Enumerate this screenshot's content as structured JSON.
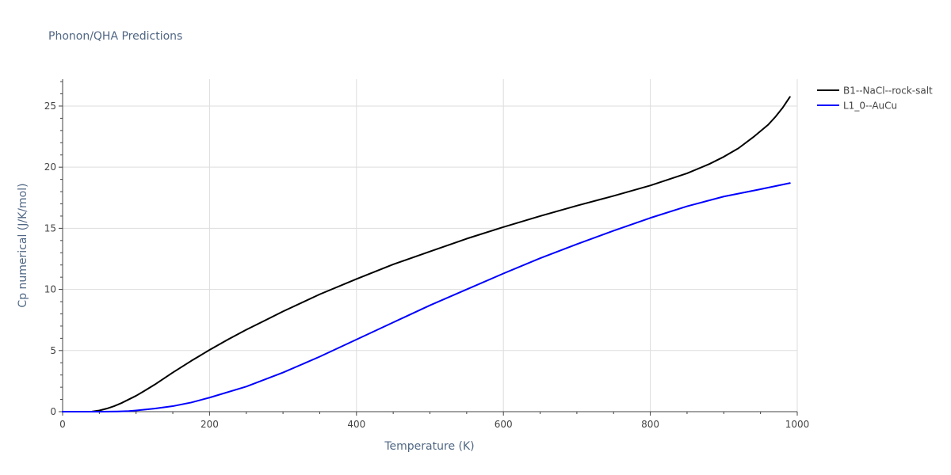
{
  "chart_data": {
    "type": "line",
    "title": "Phonon/QHA Predictions",
    "xlabel": "Temperature (K)",
    "ylabel": "Cp numerical (J/K/mol)",
    "xlim": [
      0,
      1000
    ],
    "ylim": [
      0,
      27.2
    ],
    "x_ticks": [
      "0",
      "200",
      "400",
      "600",
      "800",
      "1000"
    ],
    "y_ticks": [
      "0",
      "5",
      "10",
      "15",
      "20",
      "25"
    ],
    "grid": true,
    "legend_position": "top-right, outside plot",
    "series": [
      {
        "name": "B1--NaCl--rock-salt",
        "color": "#000000",
        "x": [
          0,
          10,
          20,
          30,
          40,
          50,
          60,
          70,
          80,
          90,
          100,
          110,
          125,
          150,
          175,
          200,
          225,
          250,
          275,
          300,
          350,
          400,
          450,
          500,
          550,
          600,
          650,
          700,
          750,
          800,
          850,
          880,
          900,
          920,
          940,
          960,
          970,
          980,
          990
        ],
        "y": [
          0,
          0,
          0,
          0,
          0.01,
          0.1,
          0.25,
          0.45,
          0.7,
          1.0,
          1.3,
          1.65,
          2.2,
          3.2,
          4.15,
          5.05,
          5.9,
          6.7,
          7.45,
          8.2,
          9.6,
          10.85,
          12.05,
          13.1,
          14.15,
          15.1,
          16.0,
          16.85,
          17.65,
          18.5,
          19.5,
          20.25,
          20.85,
          21.55,
          22.45,
          23.45,
          24.1,
          24.85,
          25.75
        ]
      },
      {
        "name": "L1_0--AuCu",
        "color": "#0000ff",
        "x": [
          0,
          25,
          50,
          75,
          90,
          100,
          125,
          150,
          175,
          200,
          250,
          300,
          350,
          400,
          450,
          500,
          550,
          600,
          650,
          700,
          750,
          800,
          850,
          900,
          950,
          990
        ],
        "y": [
          0,
          0,
          0,
          0.02,
          0.05,
          0.1,
          0.25,
          0.45,
          0.75,
          1.15,
          2.05,
          3.2,
          4.5,
          5.9,
          7.3,
          8.7,
          10.0,
          11.3,
          12.55,
          13.7,
          14.8,
          15.85,
          16.8,
          17.6,
          18.2,
          18.7
        ]
      }
    ]
  }
}
